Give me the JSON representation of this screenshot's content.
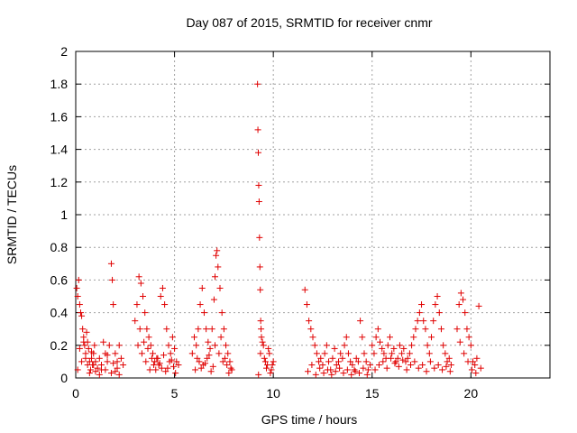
{
  "chart_data": {
    "type": "scatter",
    "title": "Day 087 of 2015, SRMTID for receiver cnmr",
    "xlabel": "GPS time / hours",
    "ylabel": "SRMTID / TECUs",
    "xlim": [
      0,
      24
    ],
    "ylim": [
      0,
      2
    ],
    "xticks": [
      0,
      5,
      10,
      15,
      20
    ],
    "yticks": [
      0,
      0.2,
      0.4,
      0.6,
      0.8,
      1,
      1.2,
      1.4,
      1.6,
      1.8,
      2
    ],
    "xtick_labels": [
      "0",
      "5",
      "10",
      "15",
      "20"
    ],
    "ytick_labels": [
      "0",
      "0.2",
      "0.4",
      "0.6",
      "0.8",
      "1",
      "1.2",
      "1.4",
      "1.6",
      "1.8",
      "2"
    ],
    "grid": true,
    "marker": "+",
    "color": "#e00000",
    "series": [
      {
        "x": [
          0.05,
          0.1,
          0.15,
          0.2,
          0.25,
          0.3,
          0.35,
          0.4,
          0.45,
          0.5,
          0.55,
          0.6,
          0.65,
          0.7,
          0.75,
          0.8,
          0.85,
          0.9,
          0.95,
          1.0,
          1.1,
          1.2,
          1.3,
          1.4,
          1.5,
          1.6,
          1.7,
          1.8,
          1.85,
          1.9,
          2.0,
          2.1,
          2.2,
          2.3,
          2.4,
          0.1,
          0.3,
          0.5,
          0.7,
          0.9,
          1.2,
          1.5,
          1.8,
          2.0,
          2.2,
          0.2,
          0.4,
          0.6,
          0.8,
          1.0,
          1.3,
          1.6,
          1.9,
          2.1,
          3.0,
          3.1,
          3.2,
          3.3,
          3.4,
          3.5,
          3.6,
          3.7,
          3.8,
          3.9,
          4.0,
          4.1,
          4.2,
          4.3,
          4.4,
          4.5,
          4.6,
          4.7,
          4.8,
          4.9,
          5.0,
          5.1,
          5.2,
          3.15,
          3.35,
          3.55,
          3.75,
          3.95,
          4.15,
          4.35,
          4.55,
          4.75,
          4.95,
          3.25,
          3.45,
          3.65,
          3.85,
          4.05,
          4.25,
          4.45,
          4.65,
          4.85,
          5.05,
          5.9,
          6.0,
          6.1,
          6.2,
          6.3,
          6.4,
          6.5,
          6.6,
          6.7,
          6.8,
          6.9,
          7.0,
          7.05,
          7.1,
          7.15,
          7.2,
          7.3,
          7.4,
          7.5,
          7.6,
          7.7,
          7.8,
          7.9,
          6.05,
          6.25,
          6.45,
          6.65,
          6.85,
          7.05,
          7.25,
          7.45,
          7.65,
          7.85,
          6.15,
          6.35,
          6.55,
          6.75,
          6.95,
          7.35,
          7.55,
          7.75,
          9.2,
          9.22,
          9.24,
          9.26,
          9.28,
          9.3,
          9.32,
          9.34,
          9.36,
          9.38,
          9.4,
          9.5,
          9.6,
          9.7,
          9.8,
          9.9,
          10.0,
          9.45,
          9.55,
          9.65,
          9.75,
          9.85,
          9.95,
          9.35,
          9.25,
          11.6,
          11.7,
          11.8,
          11.9,
          12.0,
          12.1,
          12.2,
          12.3,
          12.4,
          12.5,
          12.6,
          12.7,
          12.8,
          12.9,
          13.0,
          13.1,
          13.2,
          13.3,
          13.4,
          13.5,
          13.6,
          13.7,
          13.8,
          13.9,
          14.0,
          14.1,
          14.2,
          14.3,
          14.4,
          14.5,
          14.6,
          14.7,
          14.8,
          14.9,
          11.75,
          11.95,
          12.15,
          12.35,
          12.55,
          12.75,
          12.95,
          13.15,
          13.35,
          13.55,
          13.75,
          13.95,
          14.15,
          14.35,
          14.55,
          14.75,
          15.0,
          15.1,
          15.2,
          15.3,
          15.4,
          15.5,
          15.6,
          15.7,
          15.8,
          15.9,
          16.0,
          16.1,
          16.2,
          16.3,
          16.4,
          16.5,
          16.6,
          16.7,
          16.8,
          16.9,
          17.0,
          17.1,
          17.2,
          17.3,
          17.4,
          17.5,
          17.6,
          17.7,
          17.8,
          17.9,
          18.0,
          18.1,
          18.2,
          18.3,
          18.4,
          18.5,
          18.6,
          18.7,
          18.8,
          18.9,
          19.0,
          15.15,
          15.35,
          15.55,
          15.75,
          15.95,
          16.15,
          16.35,
          16.55,
          16.75,
          16.95,
          17.15,
          17.35,
          17.55,
          17.75,
          17.95,
          18.15,
          18.35,
          18.55,
          18.75,
          18.95,
          19.3,
          19.4,
          19.5,
          19.6,
          19.7,
          19.8,
          19.9,
          20.0,
          20.1,
          20.2,
          20.3,
          20.4,
          20.5,
          19.45,
          19.65,
          19.85,
          20.05,
          20.25
        ],
        "y": [
          0.55,
          0.5,
          0.6,
          0.45,
          0.4,
          0.38,
          0.3,
          0.25,
          0.2,
          0.15,
          0.28,
          0.22,
          0.18,
          0.1,
          0.05,
          0.12,
          0.08,
          0.15,
          0.2,
          0.1,
          0.06,
          0.12,
          0.08,
          0.22,
          0.15,
          0.1,
          0.2,
          0.7,
          0.6,
          0.45,
          0.15,
          0.1,
          0.2,
          0.12,
          0.08,
          0.05,
          0.1,
          0.12,
          0.03,
          0.08,
          0.02,
          0.05,
          0.03,
          0.04,
          0.02,
          0.18,
          0.22,
          0.08,
          0.16,
          0.04,
          0.05,
          0.14,
          0.09,
          0.06,
          0.35,
          0.45,
          0.62,
          0.58,
          0.5,
          0.4,
          0.3,
          0.25,
          0.2,
          0.15,
          0.1,
          0.12,
          0.08,
          0.5,
          0.55,
          0.45,
          0.3,
          0.2,
          0.15,
          0.25,
          0.18,
          0.1,
          0.08,
          0.2,
          0.15,
          0.1,
          0.05,
          0.08,
          0.12,
          0.06,
          0.04,
          0.1,
          0.07,
          0.3,
          0.22,
          0.18,
          0.12,
          0.05,
          0.09,
          0.14,
          0.06,
          0.11,
          0.03,
          0.15,
          0.25,
          0.2,
          0.3,
          0.45,
          0.55,
          0.4,
          0.3,
          0.22,
          0.18,
          0.3,
          0.48,
          0.62,
          0.75,
          0.78,
          0.68,
          0.55,
          0.4,
          0.3,
          0.2,
          0.15,
          0.1,
          0.05,
          0.05,
          0.1,
          0.08,
          0.12,
          0.04,
          0.2,
          0.15,
          0.1,
          0.08,
          0.06,
          0.12,
          0.06,
          0.09,
          0.14,
          0.07,
          0.25,
          0.12,
          0.03,
          1.8,
          1.52,
          1.38,
          1.18,
          1.08,
          0.86,
          0.68,
          0.54,
          0.35,
          0.3,
          0.25,
          0.2,
          0.1,
          0.08,
          0.15,
          0.05,
          0.1,
          0.22,
          0.12,
          0.06,
          0.18,
          0.03,
          0.08,
          0.15,
          0.02,
          0.54,
          0.45,
          0.35,
          0.3,
          0.25,
          0.2,
          0.15,
          0.1,
          0.12,
          0.08,
          0.15,
          0.2,
          0.1,
          0.05,
          0.12,
          0.18,
          0.08,
          0.1,
          0.15,
          0.12,
          0.2,
          0.25,
          0.15,
          0.1,
          0.08,
          0.05,
          0.12,
          0.1,
          0.35,
          0.25,
          0.15,
          0.1,
          0.05,
          0.08,
          0.04,
          0.08,
          0.02,
          0.06,
          0.03,
          0.05,
          0.02,
          0.04,
          0.06,
          0.03,
          0.05,
          0.02,
          0.04,
          0.03,
          0.06,
          0.02,
          0.2,
          0.15,
          0.25,
          0.3,
          0.22,
          0.18,
          0.15,
          0.12,
          0.2,
          0.25,
          0.15,
          0.18,
          0.1,
          0.12,
          0.2,
          0.15,
          0.18,
          0.1,
          0.12,
          0.15,
          0.2,
          0.25,
          0.3,
          0.35,
          0.4,
          0.45,
          0.35,
          0.3,
          0.2,
          0.15,
          0.25,
          0.35,
          0.45,
          0.5,
          0.4,
          0.3,
          0.2,
          0.15,
          0.1,
          0.12,
          0.08,
          0.05,
          0.08,
          0.1,
          0.06,
          0.12,
          0.09,
          0.07,
          0.11,
          0.05,
          0.08,
          0.1,
          0.06,
          0.08,
          0.04,
          0.1,
          0.06,
          0.08,
          0.05,
          0.07,
          0.04,
          0.3,
          0.45,
          0.52,
          0.48,
          0.4,
          0.3,
          0.25,
          0.2,
          0.1,
          0.08,
          0.12,
          0.44,
          0.06,
          0.22,
          0.15,
          0.1,
          0.05,
          0.03
        ]
      }
    ]
  }
}
